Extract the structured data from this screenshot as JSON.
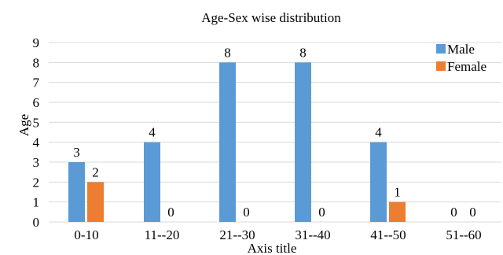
{
  "chart_data": {
    "type": "bar",
    "title": "Age-Sex wise distribution",
    "xlabel": "Axis title",
    "ylabel": "Age",
    "categories": [
      "0-10",
      "11--20",
      "21--30",
      "31--40",
      "41--50",
      "51--60"
    ],
    "series": [
      {
        "name": "Male",
        "values": [
          3,
          4,
          8,
          8,
          4,
          0
        ],
        "color": "#5B9BD5"
      },
      {
        "name": "Female",
        "values": [
          2,
          0,
          0,
          0,
          1,
          0
        ],
        "color": "#ED7D31"
      }
    ],
    "ylim": [
      0,
      9
    ],
    "yticks": [
      0,
      1,
      2,
      3,
      4,
      5,
      6,
      7,
      8,
      9
    ],
    "grid": true,
    "gridline_color": "#D9D9D9",
    "legend_position": "top-right",
    "data_labels": true
  }
}
